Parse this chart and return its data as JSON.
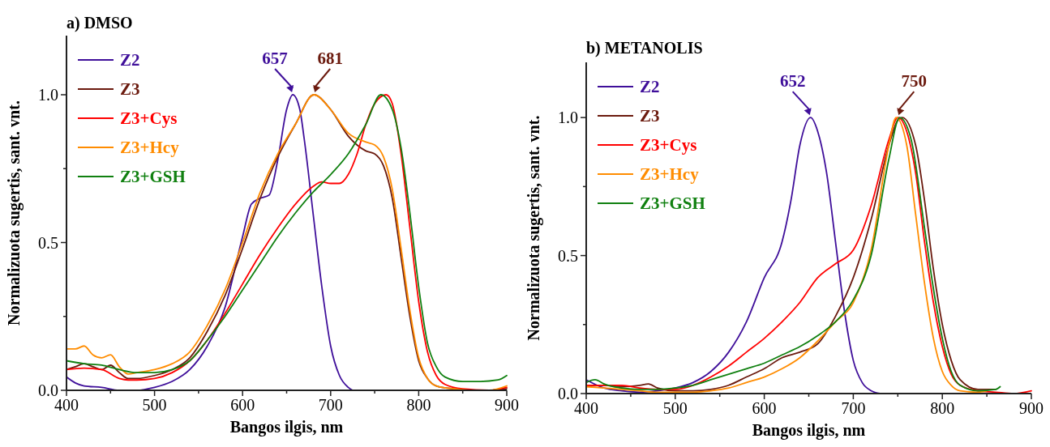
{
  "chart_data": [
    {
      "type": "line",
      "title": "a) DMSO",
      "xlabel": "Bangos ilgis, nm",
      "ylabel": "Normalizuota sugertis, sant. vnt.",
      "legend": "top left",
      "xlim": [
        400,
        900
      ],
      "xticks": [
        400,
        {
          "value": 450,
          "label": null
        },
        500,
        {
          "value": 550,
          "label": null
        },
        600,
        {
          "value": 650,
          "label": null
        },
        700,
        {
          "value": 750,
          "label": null
        },
        800,
        {
          "value": 850,
          "label": null
        },
        900
      ],
      "ylim": [
        0,
        1.2
      ],
      "yticks": [
        {
          "value": 0,
          "label": "0.0"
        },
        {
          "value": 0.25,
          "label": null
        },
        {
          "value": 0.5,
          "label": "0.5"
        },
        {
          "value": 0.75,
          "label": null
        },
        {
          "value": 1,
          "label": "1.0"
        }
      ],
      "annotations": [
        {
          "text": "657",
          "x": 657,
          "y": 1.0
        },
        {
          "text": "681",
          "x": 681,
          "y": 1.0
        }
      ],
      "series": [
        {
          "name": "Z2",
          "color": "#3f0f9a",
          "x": [
            400,
            410,
            420,
            440,
            460,
            480,
            500,
            520,
            540,
            560,
            580,
            600,
            610,
            620,
            630,
            640,
            650,
            657,
            665,
            670,
            680,
            690,
            700,
            710,
            720,
            725
          ],
          "values": [
            0.045,
            0.025,
            0.015,
            0.01,
            0,
            0,
            0.01,
            0.03,
            0.07,
            0.15,
            0.28,
            0.52,
            0.63,
            0.65,
            0.66,
            0.78,
            0.95,
            1.0,
            0.95,
            0.85,
            0.6,
            0.35,
            0.15,
            0.05,
            0.01,
            0
          ]
        },
        {
          "name": "Z3",
          "color": "#6b1a0e",
          "x": [
            400,
            410,
            420,
            430,
            440,
            450,
            460,
            470,
            480,
            500,
            520,
            540,
            560,
            580,
            600,
            620,
            640,
            660,
            681,
            700,
            720,
            740,
            750,
            760,
            770,
            780,
            790,
            800,
            810,
            820,
            840,
            860,
            880,
            900
          ],
          "values": [
            0.07,
            0.08,
            0.09,
            0.08,
            0.07,
            0.085,
            0.06,
            0.04,
            0.04,
            0.05,
            0.07,
            0.11,
            0.2,
            0.32,
            0.48,
            0.65,
            0.79,
            0.9,
            1.0,
            0.95,
            0.86,
            0.81,
            0.8,
            0.76,
            0.65,
            0.45,
            0.25,
            0.1,
            0.04,
            0.015,
            0.005,
            0,
            0,
            0.005
          ]
        },
        {
          "name": "Z3+Cys",
          "color": "#ff0000",
          "x": [
            400,
            420,
            440,
            460,
            470,
            480,
            500,
            520,
            540,
            560,
            580,
            600,
            620,
            640,
            660,
            680,
            690,
            700,
            710,
            720,
            730,
            740,
            750,
            763,
            770,
            780,
            790,
            800,
            810,
            820,
            830,
            850,
            880,
            900
          ],
          "values": [
            0.07,
            0.075,
            0.07,
            0.04,
            0.035,
            0.035,
            0.04,
            0.06,
            0.1,
            0.17,
            0.26,
            0.36,
            0.46,
            0.55,
            0.63,
            0.69,
            0.705,
            0.7,
            0.7,
            0.73,
            0.8,
            0.9,
            0.97,
            1.0,
            0.97,
            0.8,
            0.55,
            0.3,
            0.13,
            0.05,
            0.02,
            0.005,
            0,
            0.01
          ]
        },
        {
          "name": "Z3+Hcy",
          "color": "#ff8c00",
          "x": [
            400,
            410,
            420,
            430,
            440,
            450,
            460,
            470,
            480,
            500,
            520,
            540,
            560,
            580,
            600,
            620,
            640,
            660,
            681,
            700,
            720,
            740,
            750,
            760,
            770,
            780,
            790,
            800,
            810,
            820,
            840,
            860,
            880,
            900
          ],
          "values": [
            0.14,
            0.14,
            0.15,
            0.12,
            0.11,
            0.12,
            0.08,
            0.055,
            0.06,
            0.07,
            0.09,
            0.13,
            0.22,
            0.34,
            0.5,
            0.67,
            0.8,
            0.9,
            1.0,
            0.95,
            0.87,
            0.84,
            0.83,
            0.79,
            0.68,
            0.48,
            0.27,
            0.11,
            0.04,
            0.015,
            0.005,
            0,
            0,
            0.015
          ]
        },
        {
          "name": "Z3+GSH",
          "color": "#108010",
          "x": [
            400,
            420,
            440,
            460,
            480,
            500,
            520,
            540,
            560,
            580,
            600,
            620,
            640,
            660,
            680,
            700,
            720,
            740,
            757,
            770,
            780,
            790,
            800,
            810,
            820,
            830,
            850,
            870,
            890,
            900
          ],
          "values": [
            0.1,
            0.09,
            0.085,
            0.07,
            0.06,
            0.06,
            0.07,
            0.1,
            0.17,
            0.25,
            0.34,
            0.43,
            0.52,
            0.6,
            0.67,
            0.73,
            0.8,
            0.9,
            1.0,
            0.95,
            0.82,
            0.6,
            0.35,
            0.16,
            0.08,
            0.045,
            0.03,
            0.03,
            0.035,
            0.05
          ]
        }
      ]
    },
    {
      "type": "line",
      "title": "b) METANOLIS",
      "xlabel": "Bangos ilgis, nm",
      "ylabel": "Normalizuota sugertis, sant. vnt.",
      "legend": "top left",
      "xlim": [
        400,
        900
      ],
      "xticks": [
        400,
        {
          "value": 450,
          "label": null
        },
        500,
        {
          "value": 550,
          "label": null
        },
        600,
        {
          "value": 650,
          "label": null
        },
        700,
        {
          "value": 750,
          "label": null
        },
        800,
        {
          "value": 850,
          "label": null
        },
        900
      ],
      "ylim": [
        0,
        1.2
      ],
      "yticks": [
        {
          "value": 0,
          "label": "0.0"
        },
        {
          "value": 0.25,
          "label": null
        },
        {
          "value": 0.5,
          "label": "0.5"
        },
        {
          "value": 0.75,
          "label": null
        },
        {
          "value": 1,
          "label": "1.0"
        }
      ],
      "annotations": [
        {
          "text": "652",
          "x": 652,
          "y": 1.0
        },
        {
          "text": "750",
          "x": 750,
          "y": 1.0
        }
      ],
      "series": [
        {
          "name": "Z2",
          "color": "#3f0f9a",
          "x": [
            400,
            420,
            440,
            460,
            480,
            500,
            520,
            540,
            560,
            580,
            600,
            620,
            630,
            640,
            652,
            660,
            670,
            680,
            690,
            700,
            710,
            720,
            730
          ],
          "values": [
            0.05,
            0.02,
            0.01,
            0.005,
            0.01,
            0.02,
            0.04,
            0.08,
            0.15,
            0.26,
            0.42,
            0.55,
            0.7,
            0.9,
            1.0,
            0.95,
            0.8,
            0.55,
            0.3,
            0.12,
            0.04,
            0.01,
            0
          ]
        },
        {
          "name": "Z3",
          "color": "#6b1a0e",
          "x": [
            400,
            420,
            440,
            460,
            470,
            480,
            500,
            520,
            540,
            560,
            580,
            600,
            620,
            640,
            660,
            680,
            700,
            720,
            740,
            750,
            755,
            770,
            780,
            790,
            800,
            810,
            820,
            840,
            860
          ],
          "values": [
            0.03,
            0.03,
            0.025,
            0.03,
            0.035,
            0.02,
            0.01,
            0.01,
            0.015,
            0.03,
            0.06,
            0.09,
            0.13,
            0.15,
            0.18,
            0.28,
            0.42,
            0.63,
            0.9,
            0.99,
            1.0,
            0.9,
            0.7,
            0.45,
            0.25,
            0.12,
            0.05,
            0.015,
            0.015
          ]
        },
        {
          "name": "Z3+Cys",
          "color": "#ff0000",
          "x": [
            400,
            420,
            440,
            460,
            480,
            500,
            520,
            540,
            560,
            580,
            600,
            620,
            640,
            660,
            680,
            700,
            720,
            740,
            750,
            760,
            770,
            780,
            790,
            800,
            810,
            820,
            840,
            860,
            880,
            900
          ],
          "values": [
            0.03,
            0.03,
            0.03,
            0.02,
            0.015,
            0.015,
            0.03,
            0.06,
            0.1,
            0.15,
            0.2,
            0.26,
            0.33,
            0.42,
            0.47,
            0.52,
            0.68,
            0.92,
            1.0,
            0.95,
            0.8,
            0.55,
            0.33,
            0.17,
            0.07,
            0.03,
            0.01,
            0.005,
            0,
            0.01
          ]
        },
        {
          "name": "Z3+Hcy",
          "color": "#ff8c00",
          "x": [
            400,
            420,
            440,
            460,
            480,
            500,
            520,
            540,
            560,
            580,
            600,
            620,
            640,
            660,
            680,
            700,
            720,
            740,
            748,
            760,
            770,
            780,
            790,
            800,
            810,
            820,
            840,
            850
          ],
          "values": [
            0.025,
            0.02,
            0.015,
            0.01,
            0.005,
            0.005,
            0.005,
            0.01,
            0.02,
            0.04,
            0.06,
            0.09,
            0.13,
            0.19,
            0.26,
            0.33,
            0.52,
            0.9,
            1.0,
            0.9,
            0.65,
            0.4,
            0.2,
            0.08,
            0.03,
            0.01,
            0.005,
            0.01
          ]
        },
        {
          "name": "Z3+GSH",
          "color": "#108010",
          "x": [
            400,
            410,
            420,
            440,
            460,
            480,
            500,
            520,
            540,
            560,
            580,
            600,
            620,
            640,
            660,
            680,
            700,
            720,
            740,
            752,
            765,
            780,
            790,
            800,
            810,
            820,
            840,
            860,
            865
          ],
          "values": [
            0.04,
            0.05,
            0.035,
            0.02,
            0.015,
            0.015,
            0.02,
            0.03,
            0.05,
            0.07,
            0.09,
            0.11,
            0.14,
            0.17,
            0.21,
            0.26,
            0.34,
            0.5,
            0.85,
            1.0,
            0.92,
            0.6,
            0.38,
            0.2,
            0.08,
            0.03,
            0.01,
            0.015,
            0.025
          ]
        }
      ]
    }
  ]
}
